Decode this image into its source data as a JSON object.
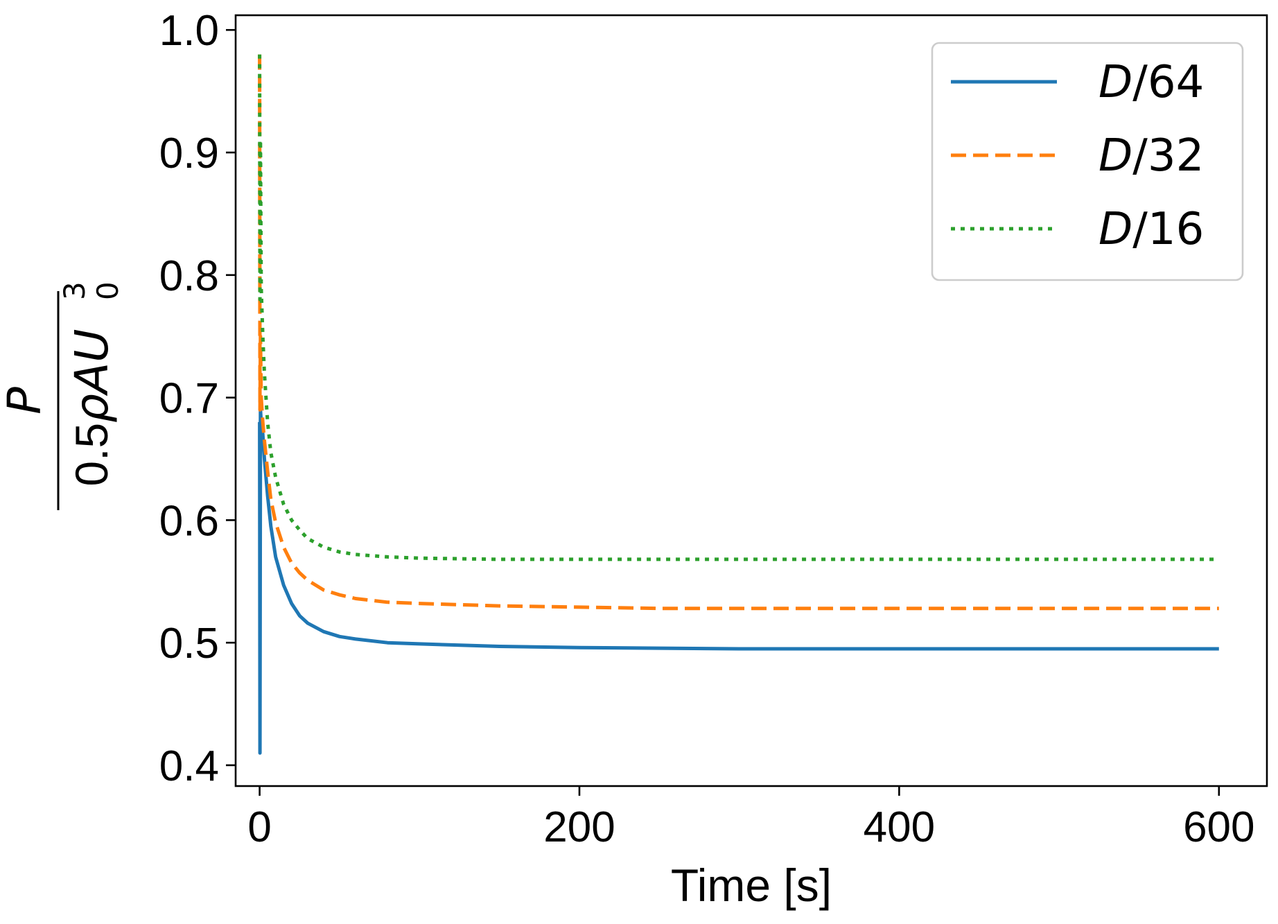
{
  "chart_data": {
    "type": "line",
    "xlabel": "Time [s]",
    "ylabel": {
      "numerator": "P",
      "denominator_prefix": "0.5",
      "denominator_rho": "ρ",
      "denominator_A": "A",
      "denominator_U": "U",
      "denominator_sup": "3",
      "denominator_sub": "0"
    },
    "xlim": [
      -15,
      630
    ],
    "ylim": [
      0.383,
      1.012
    ],
    "xticks": [
      0,
      200,
      400,
      600
    ],
    "xtick_labels": [
      "0",
      "200",
      "400",
      "600"
    ],
    "yticks": [
      0.4,
      0.5,
      0.6,
      0.7,
      0.8,
      0.9,
      1.0
    ],
    "ytick_labels": [
      "0.4",
      "0.5",
      "0.6",
      "0.7",
      "0.8",
      "0.9",
      "1.0"
    ],
    "grid": false,
    "legend_position": "top-right",
    "series": [
      {
        "name": "D/64",
        "legend_italic": "D",
        "legend_rest": "/64",
        "color": "#1f77b4",
        "style": "solid",
        "x": [
          0,
          0.2,
          0.5,
          1,
          2,
          3,
          5,
          7,
          10,
          15,
          20,
          25,
          30,
          40,
          50,
          60,
          80,
          100,
          150,
          200,
          250,
          300,
          400,
          500,
          600
        ],
        "y": [
          0.68,
          0.41,
          0.69,
          0.68,
          0.67,
          0.65,
          0.62,
          0.595,
          0.57,
          0.547,
          0.532,
          0.522,
          0.516,
          0.509,
          0.505,
          0.503,
          0.5,
          0.499,
          0.497,
          0.496,
          0.4955,
          0.495,
          0.495,
          0.495,
          0.495
        ]
      },
      {
        "name": "D/32",
        "legend_italic": "D",
        "legend_rest": "/32",
        "color": "#ff7f0e",
        "style": "dashed",
        "x": [
          0,
          0.2,
          0.5,
          1,
          2,
          3,
          5,
          7,
          10,
          15,
          20,
          25,
          30,
          40,
          50,
          60,
          80,
          100,
          150,
          200,
          250,
          300,
          400,
          500,
          600
        ],
        "y": [
          0.98,
          0.69,
          0.75,
          0.7,
          0.68,
          0.665,
          0.64,
          0.617,
          0.598,
          0.578,
          0.565,
          0.557,
          0.551,
          0.543,
          0.539,
          0.536,
          0.533,
          0.532,
          0.53,
          0.529,
          0.528,
          0.528,
          0.528,
          0.528,
          0.528
        ]
      },
      {
        "name": "D/16",
        "legend_italic": "D",
        "legend_rest": "/16",
        "color": "#2ca02c",
        "style": "dotted",
        "x": [
          0,
          0.2,
          0.5,
          1,
          2,
          3,
          5,
          7,
          10,
          15,
          20,
          25,
          30,
          40,
          50,
          60,
          80,
          100,
          150,
          200,
          250,
          300,
          400,
          500,
          600
        ],
        "y": [
          0.98,
          0.78,
          0.91,
          0.79,
          0.75,
          0.72,
          0.68,
          0.655,
          0.635,
          0.613,
          0.6,
          0.592,
          0.585,
          0.578,
          0.574,
          0.572,
          0.57,
          0.569,
          0.568,
          0.568,
          0.568,
          0.568,
          0.568,
          0.568,
          0.568
        ]
      }
    ]
  }
}
